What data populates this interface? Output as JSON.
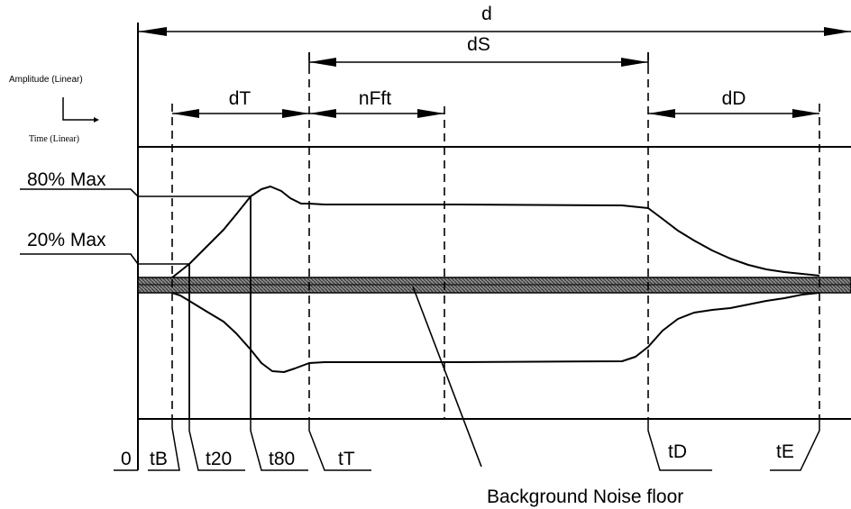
{
  "axis_key": {
    "amplitude": "Amplitude (Linear)",
    "time": "Time (Linear)"
  },
  "thresholds": {
    "max80": "80% Max",
    "max20": "20% Max"
  },
  "durations": {
    "d": "d",
    "dS": "dS",
    "dT": "dT",
    "nFft": "nFft",
    "dD": "dD"
  },
  "times": {
    "zero": "0",
    "tB": "tB",
    "t20": "t20",
    "t80": "t80",
    "tT": "tT",
    "tD": "tD",
    "tE": "tE"
  },
  "noise_floor": "Background Noise floor"
}
